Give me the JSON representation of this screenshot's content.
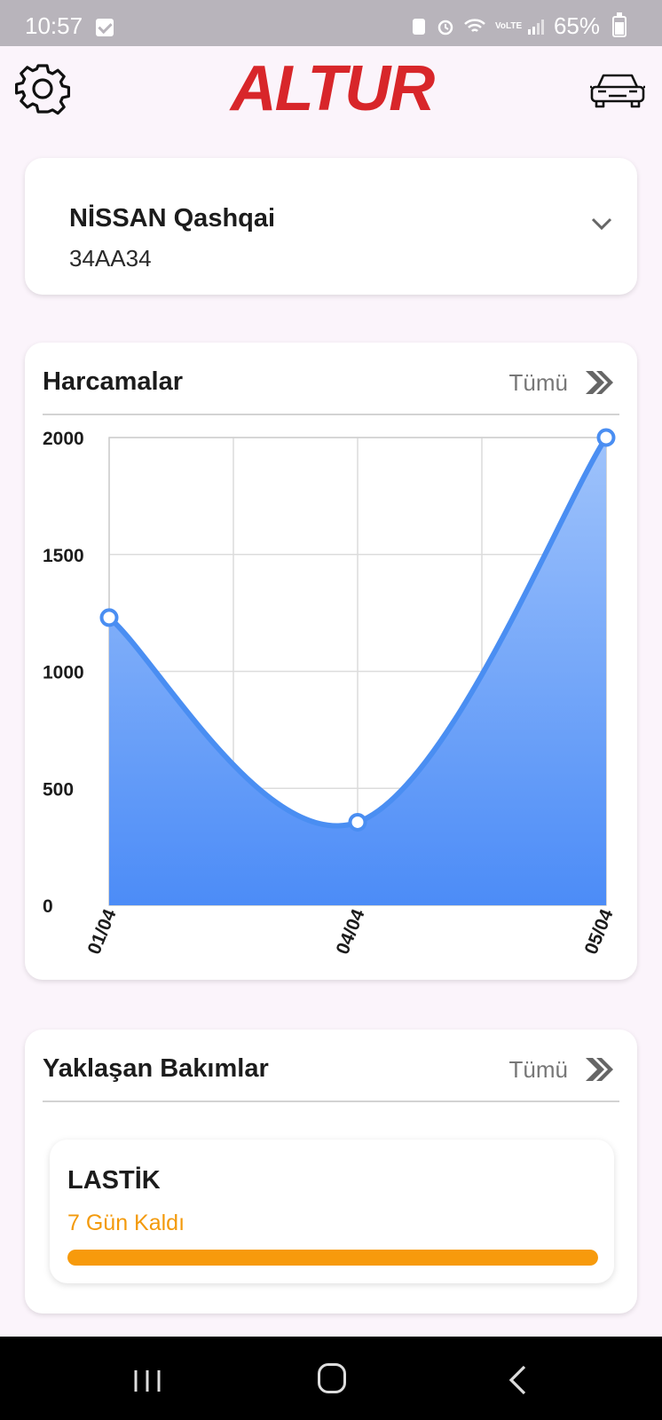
{
  "status_bar": {
    "time": "10:57",
    "battery": "65%",
    "network_label": "VoLTE"
  },
  "app_bar": {
    "logo_text": "ALTUR",
    "logo_color": "#d8262a",
    "settings_icon": "gear-icon",
    "vehicle_icon": "car-icon"
  },
  "vehicle": {
    "name": "NİSSAN Qashqai",
    "plate": "34AA34"
  },
  "expenses": {
    "title": "Harcamalar",
    "see_all": "Tümü"
  },
  "chart_data": {
    "type": "area",
    "x": [
      "01/04",
      "04/04",
      "05/04"
    ],
    "values": [
      1230,
      355,
      2000
    ],
    "ylim": [
      0,
      2000
    ],
    "yticks": [
      "2000",
      "1500",
      "1000",
      "500",
      "0"
    ],
    "grid": true,
    "line_color": "#4a8ef2",
    "fill_top_color": "#9fc3fb",
    "fill_bottom_color": "#4c8cf7"
  },
  "maintenance": {
    "title": "Yaklaşan Bakımlar",
    "see_all": "Tümü",
    "items": [
      {
        "name": "LASTİK",
        "remaining": "7 Gün Kaldı",
        "progress": 1.0,
        "color": "#f79a0c"
      }
    ]
  }
}
